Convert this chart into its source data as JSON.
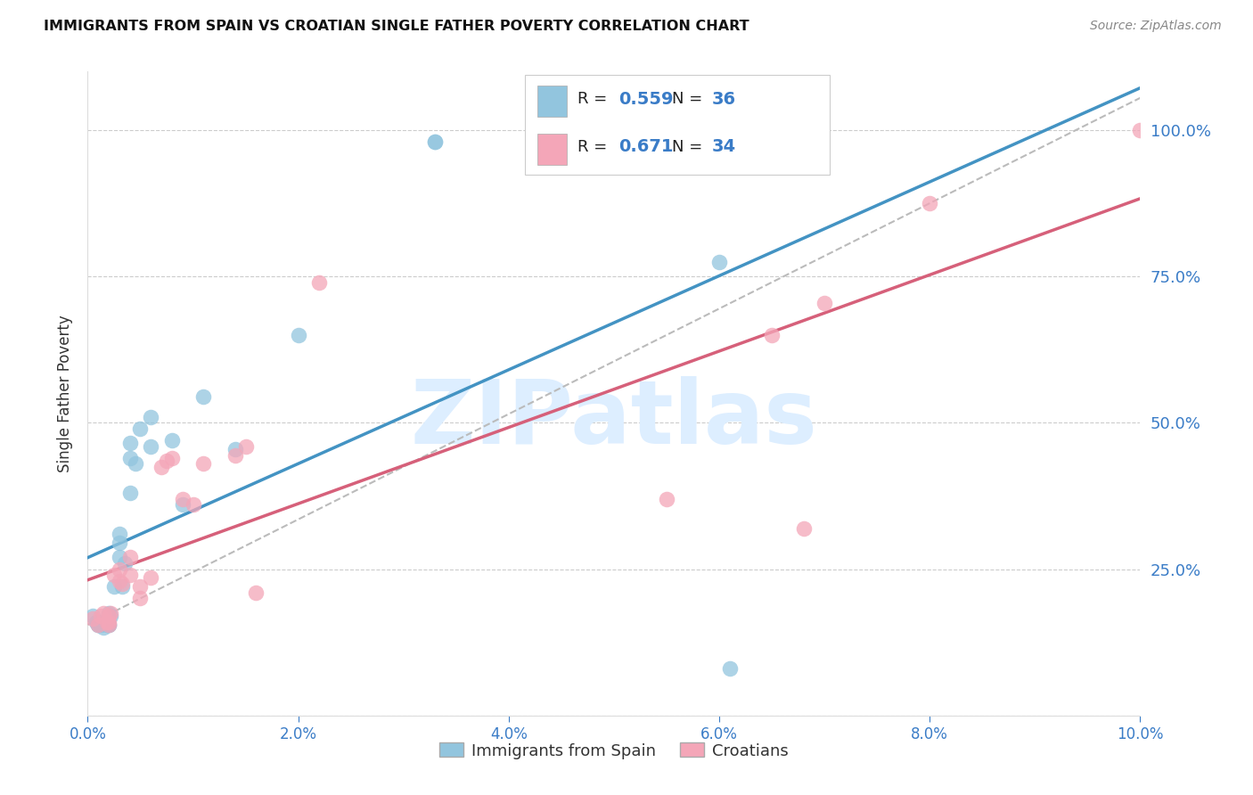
{
  "title": "IMMIGRANTS FROM SPAIN VS CROATIAN SINGLE FATHER POVERTY CORRELATION CHART",
  "source": "Source: ZipAtlas.com",
  "ylabel": "Single Father Poverty",
  "y_ticks": [
    0.0,
    0.25,
    0.5,
    0.75,
    1.0
  ],
  "y_tick_labels": [
    "",
    "25.0%",
    "50.0%",
    "75.0%",
    "100.0%"
  ],
  "x_range": [
    0.0,
    0.1
  ],
  "y_range": [
    0.0,
    1.1
  ],
  "spain_R": 0.559,
  "spain_N": 36,
  "croatia_R": 0.671,
  "croatia_N": 34,
  "spain_color": "#92c5de",
  "croatia_color": "#f4a6b8",
  "spain_line_color": "#4393c3",
  "croatia_line_color": "#d6607a",
  "watermark_text": "ZIPatlas",
  "watermark_color": "#ddeeff",
  "spain_x": [
    0.0005,
    0.0008,
    0.001,
    0.001,
    0.0012,
    0.0013,
    0.0015,
    0.0015,
    0.0018,
    0.002,
    0.002,
    0.002,
    0.002,
    0.0022,
    0.0025,
    0.003,
    0.003,
    0.003,
    0.0033,
    0.0035,
    0.004,
    0.004,
    0.004,
    0.0045,
    0.005,
    0.006,
    0.006,
    0.008,
    0.009,
    0.011,
    0.014,
    0.02,
    0.033,
    0.033,
    0.06,
    0.061
  ],
  "spain_y": [
    0.17,
    0.16,
    0.155,
    0.155,
    0.16,
    0.155,
    0.16,
    0.15,
    0.155,
    0.175,
    0.17,
    0.155,
    0.155,
    0.17,
    0.22,
    0.27,
    0.31,
    0.295,
    0.22,
    0.26,
    0.44,
    0.465,
    0.38,
    0.43,
    0.49,
    0.51,
    0.46,
    0.47,
    0.36,
    0.545,
    0.455,
    0.65,
    0.98,
    0.98,
    0.775,
    0.08
  ],
  "croatia_x": [
    0.0005,
    0.001,
    0.0012,
    0.0015,
    0.0018,
    0.002,
    0.002,
    0.002,
    0.0022,
    0.0025,
    0.003,
    0.003,
    0.0033,
    0.004,
    0.004,
    0.005,
    0.005,
    0.006,
    0.007,
    0.0075,
    0.008,
    0.009,
    0.01,
    0.011,
    0.014,
    0.015,
    0.016,
    0.022,
    0.055,
    0.065,
    0.068,
    0.07,
    0.08,
    0.1
  ],
  "croatia_y": [
    0.165,
    0.155,
    0.17,
    0.175,
    0.16,
    0.155,
    0.17,
    0.16,
    0.175,
    0.24,
    0.23,
    0.25,
    0.225,
    0.24,
    0.27,
    0.22,
    0.2,
    0.235,
    0.425,
    0.435,
    0.44,
    0.37,
    0.36,
    0.43,
    0.445,
    0.46,
    0.21,
    0.74,
    0.37,
    0.65,
    0.32,
    0.705,
    0.875,
    1.0
  ],
  "dashed_line_x": [
    0.0,
    0.1
  ],
  "dashed_line_y": [
    0.155,
    1.055
  ]
}
